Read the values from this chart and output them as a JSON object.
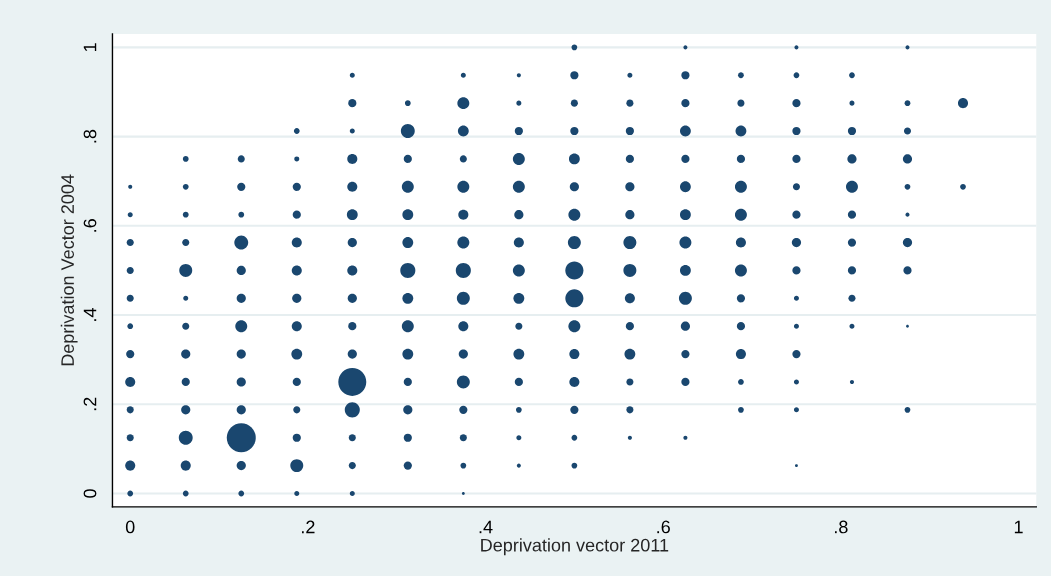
{
  "chart_data": {
    "type": "bubble",
    "xlabel": "Deprivation vector 2011",
    "ylabel": "Deprivation Vector 2004",
    "xlim": [
      -0.02,
      1.02
    ],
    "ylim": [
      -0.03,
      1.03
    ],
    "xticks": [
      0,
      {
        "value": 0.2,
        "label": ".2"
      },
      {
        "value": 0.4,
        "label": ".4"
      },
      {
        "value": 0.6,
        "label": ".6"
      },
      {
        "value": 0.8,
        "label": ".8"
      },
      1
    ],
    "yticks": [
      0,
      {
        "value": 0.2,
        "label": ".2"
      },
      {
        "value": 0.4,
        "label": ".4"
      },
      {
        "value": 0.6,
        "label": ".6"
      },
      {
        "value": 0.8,
        "label": ".8"
      },
      1
    ],
    "grid": "y",
    "marker": "circle",
    "series": [
      {
        "color": "#1a476f",
        "x": [
          0,
          0.0625,
          0.125,
          0.1875,
          0.25,
          0.375,
          0,
          0.0625,
          0.125,
          0.1875,
          0.25,
          0.3125,
          0.375,
          0.4375,
          0.5,
          0.75,
          0,
          0.0625,
          0.125,
          0.1875,
          0.25,
          0.3125,
          0.375,
          0.4375,
          0.5,
          0.5625,
          0.625,
          0,
          0.0625,
          0.125,
          0.1875,
          0.25,
          0.3125,
          0.375,
          0.4375,
          0.5,
          0.5625,
          0.6875,
          0.75,
          0.875,
          0,
          0.0625,
          0.125,
          0.1875,
          0.25,
          0.3125,
          0.375,
          0.4375,
          0.5,
          0.5625,
          0.625,
          0.6875,
          0.75,
          0.8125,
          0,
          0.0625,
          0.125,
          0.1875,
          0.25,
          0.3125,
          0.375,
          0.4375,
          0.5,
          0.5625,
          0.625,
          0.6875,
          0.75,
          0,
          0.0625,
          0.125,
          0.1875,
          0.25,
          0.3125,
          0.375,
          0.4375,
          0.5,
          0.5625,
          0.625,
          0.6875,
          0.75,
          0.8125,
          0.875,
          0,
          0.0625,
          0.125,
          0.1875,
          0.25,
          0.3125,
          0.375,
          0.4375,
          0.5,
          0.5625,
          0.625,
          0.6875,
          0.75,
          0.8125,
          0,
          0.0625,
          0.125,
          0.1875,
          0.25,
          0.3125,
          0.375,
          0.4375,
          0.5,
          0.5625,
          0.625,
          0.6875,
          0.75,
          0.8125,
          0.875,
          0,
          0.0625,
          0.125,
          0.1875,
          0.25,
          0.3125,
          0.375,
          0.4375,
          0.5,
          0.5625,
          0.625,
          0.6875,
          0.75,
          0.8125,
          0.875,
          0,
          0.0625,
          0.125,
          0.1875,
          0.25,
          0.3125,
          0.375,
          0.4375,
          0.5,
          0.5625,
          0.625,
          0.6875,
          0.75,
          0.8125,
          0.875,
          0,
          0.0625,
          0.125,
          0.1875,
          0.25,
          0.3125,
          0.375,
          0.4375,
          0.5,
          0.5625,
          0.625,
          0.6875,
          0.75,
          0.8125,
          0.875,
          0.9375,
          0.0625,
          0.125,
          0.1875,
          0.25,
          0.3125,
          0.375,
          0.4375,
          0.5,
          0.5625,
          0.625,
          0.6875,
          0.75,
          0.8125,
          0.875,
          0.1875,
          0.25,
          0.3125,
          0.375,
          0.4375,
          0.5,
          0.5625,
          0.625,
          0.6875,
          0.75,
          0.8125,
          0.875,
          0.25,
          0.3125,
          0.375,
          0.4375,
          0.5,
          0.5625,
          0.625,
          0.6875,
          0.75,
          0.8125,
          0.875,
          0.9375,
          0.25,
          0.375,
          0.4375,
          0.5,
          0.5625,
          0.625,
          0.6875,
          0.75,
          0.8125,
          0.5,
          0.625,
          0.75,
          0.875
        ],
        "values": [
          0,
          0,
          0,
          0,
          0,
          0,
          0.0625,
          0.0625,
          0.0625,
          0.0625,
          0.0625,
          0.0625,
          0.0625,
          0.0625,
          0.0625,
          0.0625,
          0.125,
          0.125,
          0.125,
          0.125,
          0.125,
          0.125,
          0.125,
          0.125,
          0.125,
          0.125,
          0.125,
          0.1875,
          0.1875,
          0.1875,
          0.1875,
          0.1875,
          0.1875,
          0.1875,
          0.1875,
          0.1875,
          0.1875,
          0.1875,
          0.1875,
          0.1875,
          0.25,
          0.25,
          0.25,
          0.25,
          0.25,
          0.25,
          0.25,
          0.25,
          0.25,
          0.25,
          0.25,
          0.25,
          0.25,
          0.25,
          0.3125,
          0.3125,
          0.3125,
          0.3125,
          0.3125,
          0.3125,
          0.3125,
          0.3125,
          0.3125,
          0.3125,
          0.3125,
          0.3125,
          0.3125,
          0.375,
          0.375,
          0.375,
          0.375,
          0.375,
          0.375,
          0.375,
          0.375,
          0.375,
          0.375,
          0.375,
          0.375,
          0.375,
          0.375,
          0.375,
          0.4375,
          0.4375,
          0.4375,
          0.4375,
          0.4375,
          0.4375,
          0.4375,
          0.4375,
          0.4375,
          0.4375,
          0.4375,
          0.4375,
          0.4375,
          0.4375,
          0.5,
          0.5,
          0.5,
          0.5,
          0.5,
          0.5,
          0.5,
          0.5,
          0.5,
          0.5,
          0.5,
          0.5,
          0.5,
          0.5,
          0.5,
          0.5625,
          0.5625,
          0.5625,
          0.5625,
          0.5625,
          0.5625,
          0.5625,
          0.5625,
          0.5625,
          0.5625,
          0.5625,
          0.5625,
          0.5625,
          0.5625,
          0.5625,
          0.625,
          0.625,
          0.625,
          0.625,
          0.625,
          0.625,
          0.625,
          0.625,
          0.625,
          0.625,
          0.625,
          0.625,
          0.625,
          0.625,
          0.625,
          0.6875,
          0.6875,
          0.6875,
          0.6875,
          0.6875,
          0.6875,
          0.6875,
          0.6875,
          0.6875,
          0.6875,
          0.6875,
          0.6875,
          0.6875,
          0.6875,
          0.6875,
          0.6875,
          0.75,
          0.75,
          0.75,
          0.75,
          0.75,
          0.75,
          0.75,
          0.75,
          0.75,
          0.75,
          0.75,
          0.75,
          0.75,
          0.75,
          0.8125,
          0.8125,
          0.8125,
          0.8125,
          0.8125,
          0.8125,
          0.8125,
          0.8125,
          0.8125,
          0.8125,
          0.8125,
          0.8125,
          0.875,
          0.875,
          0.875,
          0.875,
          0.875,
          0.875,
          0.875,
          0.875,
          0.875,
          0.875,
          0.875,
          0.875,
          0.9375,
          0.9375,
          0.9375,
          0.9375,
          0.9375,
          0.9375,
          0.9375,
          0.9375,
          0.9375,
          1,
          1,
          1,
          1
        ],
        "sizes": [
          0.04,
          0.04,
          0.04,
          0.03,
          0.03,
          0.01,
          0.12,
          0.12,
          0.1,
          0.2,
          0.06,
          0.08,
          0.04,
          0.02,
          0.04,
          0.01,
          0.06,
          0.23,
          1,
          0.08,
          0.06,
          0.08,
          0.06,
          0.03,
          0.04,
          0.02,
          0.02,
          0.06,
          0.1,
          0.1,
          0.06,
          0.27,
          0.1,
          0.08,
          0.04,
          0.08,
          0.06,
          0.04,
          0.03,
          0.04,
          0.12,
          0.08,
          0.1,
          0.08,
          0.93,
          0.08,
          0.2,
          0.08,
          0.12,
          0.06,
          0.08,
          0.04,
          0.03,
          0.02,
          0.08,
          0.1,
          0.1,
          0.14,
          0.1,
          0.14,
          0.1,
          0.14,
          0.12,
          0.14,
          0.08,
          0.12,
          0.08,
          0.04,
          0.06,
          0.17,
          0.12,
          0.08,
          0.17,
          0.12,
          0.06,
          0.17,
          0.08,
          0.1,
          0.08,
          0.03,
          0.03,
          0.01,
          0.06,
          0.03,
          0.1,
          0.1,
          0.1,
          0.14,
          0.2,
          0.14,
          0.39,
          0.12,
          0.2,
          0.08,
          0.03,
          0.06,
          0.06,
          0.2,
          0.1,
          0.12,
          0.12,
          0.27,
          0.27,
          0.17,
          0.39,
          0.2,
          0.14,
          0.17,
          0.08,
          0.08,
          0.08,
          0.06,
          0.06,
          0.23,
          0.12,
          0.1,
          0.14,
          0.17,
          0.12,
          0.2,
          0.2,
          0.17,
          0.12,
          0.1,
          0.08,
          0.1,
          0.03,
          0.04,
          0.04,
          0.08,
          0.14,
          0.14,
          0.12,
          0.1,
          0.17,
          0.1,
          0.14,
          0.17,
          0.08,
          0.08,
          0.02,
          0.02,
          0.04,
          0.08,
          0.08,
          0.12,
          0.17,
          0.17,
          0.17,
          0.1,
          0.1,
          0.14,
          0.17,
          0.06,
          0.17,
          0.04,
          0.04,
          0.04,
          0.06,
          0.03,
          0.12,
          0.08,
          0.06,
          0.17,
          0.14,
          0.08,
          0.08,
          0.08,
          0.08,
          0.1,
          0.1,
          0.04,
          0.03,
          0.23,
          0.14,
          0.08,
          0.08,
          0.08,
          0.14,
          0.14,
          0.08,
          0.08,
          0.06,
          0.08,
          0.04,
          0.17,
          0.03,
          0.06,
          0.06,
          0.08,
          0.06,
          0.08,
          0.03,
          0.04,
          0.12,
          0.03,
          0.03,
          0.02,
          0.08,
          0.03,
          0.08,
          0.04,
          0.04,
          0.04,
          0.04,
          0.02,
          0.02,
          0.02
        ]
      }
    ]
  }
}
